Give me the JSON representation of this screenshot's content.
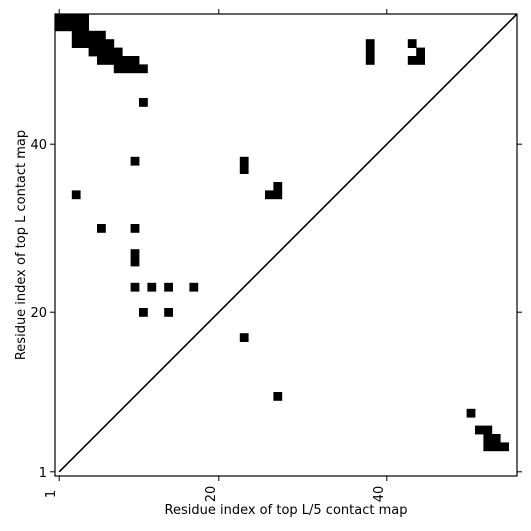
{
  "chart_data": {
    "type": "heatmap",
    "title": "",
    "xlabel": "Residue index of top L/5 contact map",
    "ylabel": "Residue index of top L contact map",
    "xlim": [
      0.5,
      55.5
    ],
    "ylim": [
      0.5,
      55.5
    ],
    "xticks": [
      {
        "value": 1,
        "label": "1"
      },
      {
        "value": 20,
        "label": "20"
      },
      {
        "value": 40,
        "label": "40"
      }
    ],
    "yticks": [
      {
        "value": 1,
        "label": "1"
      },
      {
        "value": 20,
        "label": "20"
      },
      {
        "value": 40,
        "label": "40"
      }
    ],
    "grid": false,
    "diagonal": true,
    "colors": {
      "contact": "#000000",
      "background": "#ffffff"
    },
    "contacts": [
      [
        1,
        55
      ],
      [
        2,
        55
      ],
      [
        3,
        55
      ],
      [
        4,
        55
      ],
      [
        1,
        54
      ],
      [
        2,
        54
      ],
      [
        3,
        54
      ],
      [
        4,
        54
      ],
      [
        3,
        53
      ],
      [
        4,
        53
      ],
      [
        5,
        53
      ],
      [
        6,
        53
      ],
      [
        3,
        52
      ],
      [
        4,
        52
      ],
      [
        5,
        52
      ],
      [
        6,
        52
      ],
      [
        7,
        52
      ],
      [
        5,
        51
      ],
      [
        6,
        51
      ],
      [
        7,
        51
      ],
      [
        8,
        51
      ],
      [
        6,
        50
      ],
      [
        7,
        50
      ],
      [
        8,
        50
      ],
      [
        9,
        50
      ],
      [
        10,
        50
      ],
      [
        8,
        49
      ],
      [
        9,
        49
      ],
      [
        10,
        49
      ],
      [
        11,
        49
      ],
      [
        11,
        45
      ],
      [
        38,
        52
      ],
      [
        38,
        51
      ],
      [
        38,
        50
      ],
      [
        43,
        52
      ],
      [
        44,
        51
      ],
      [
        43,
        50
      ],
      [
        44,
        50
      ],
      [
        10,
        38
      ],
      [
        23,
        38
      ],
      [
        23,
        37
      ],
      [
        3,
        34
      ],
      [
        27,
        35
      ],
      [
        26,
        34
      ],
      [
        27,
        34
      ],
      [
        6,
        30
      ],
      [
        10,
        30
      ],
      [
        10,
        27
      ],
      [
        10,
        26
      ],
      [
        10,
        23
      ],
      [
        12,
        23
      ],
      [
        14,
        23
      ],
      [
        17,
        23
      ],
      [
        11,
        20
      ],
      [
        14,
        20
      ],
      [
        23,
        17
      ],
      [
        27,
        10
      ],
      [
        50,
        8
      ],
      [
        51,
        6
      ],
      [
        52,
        6
      ],
      [
        52,
        5
      ],
      [
        53,
        5
      ],
      [
        52,
        4
      ],
      [
        53,
        4
      ],
      [
        54,
        4
      ]
    ]
  }
}
